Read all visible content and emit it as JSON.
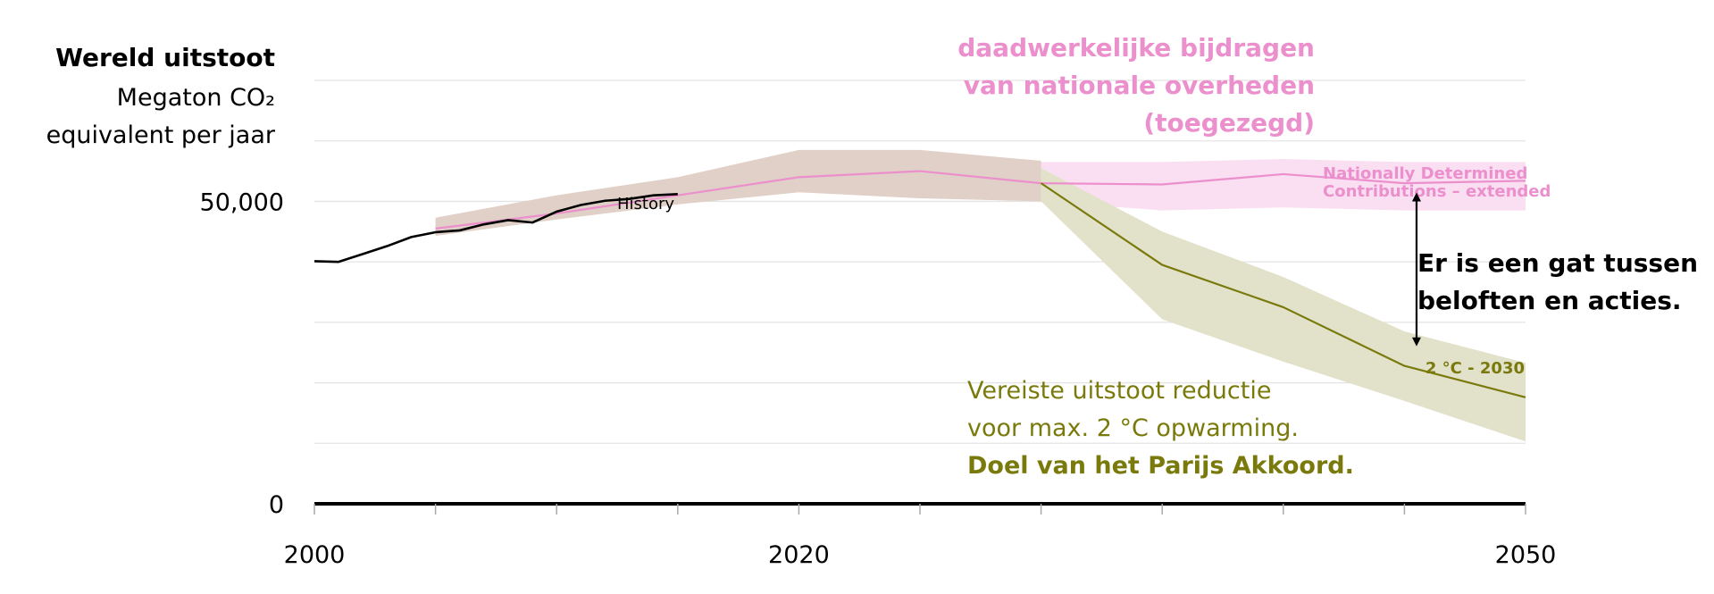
{
  "chart_data": {
    "type": "line",
    "y_title": "Wereld uitstoot",
    "y_unit_line1": "Megaton CO₂",
    "y_unit_line2": "equivalent per jaar",
    "xlim": [
      2000,
      2050
    ],
    "ylim": [
      0,
      70000
    ],
    "x_ticks": [
      2000,
      2020,
      2050
    ],
    "x_minor_ticks": [
      2000,
      2005,
      2010,
      2015,
      2020,
      2025,
      2030,
      2035,
      2040,
      2045,
      2050
    ],
    "y_ticks": [
      {
        "value": 0,
        "label": "0"
      },
      {
        "value": 50000,
        "label": "50,000"
      }
    ],
    "grid": true,
    "series": [
      {
        "name": "History",
        "color": "#000000",
        "x": [
          2000,
          2001,
          2002,
          2003,
          2004,
          2005,
          2006,
          2007,
          2008,
          2009,
          2010,
          2011,
          2012,
          2013,
          2014,
          2015
        ],
        "y": [
          40100,
          40000,
          41300,
          42600,
          44100,
          44900,
          45200,
          46200,
          46900,
          46500,
          48300,
          49400,
          50100,
          50400,
          51000,
          51200
        ]
      },
      {
        "name": "Nationally Determined Contributions – extended",
        "color": "#ec8fcd",
        "band_color": "#f9dff1",
        "x": [
          2005,
          2010,
          2015,
          2020,
          2025,
          2030,
          2035,
          2040,
          2045,
          2050
        ],
        "y": [
          45500,
          48000,
          51000,
          54000,
          55000,
          53000,
          52800,
          54500,
          53000,
          53400
        ],
        "lower": [
          45000,
          47500,
          50000,
          51500,
          51000,
          50000,
          48500,
          49000,
          48500,
          48500
        ],
        "upper": [
          46000,
          48500,
          52000,
          55200,
          56500,
          56500,
          56500,
          57000,
          56500,
          56500
        ]
      },
      {
        "name": "2 °C - 2030",
        "color": "#7a7a0c",
        "band_color": "#e2e2cb",
        "x": [
          2030,
          2035,
          2040,
          2045,
          2050
        ],
        "y": [
          53000,
          39500,
          32500,
          22800,
          17600
        ],
        "lower": [
          50000,
          30500,
          23500,
          17000,
          10300
        ],
        "upper": [
          55500,
          45000,
          37500,
          28500,
          23300
        ]
      }
    ],
    "uncertainty_band": {
      "color": "#e0d0c7",
      "x": [
        2005,
        2010,
        2015,
        2020,
        2025,
        2030
      ],
      "lower": [
        44300,
        47000,
        49500,
        51500,
        50500,
        50000
      ],
      "upper": [
        47300,
        51000,
        54000,
        58500,
        58500,
        56700
      ]
    },
    "annotations": {
      "ndc_title": [
        "daadwerkelijke bijdragen",
        "van nationale overheden",
        "(toegezegd)"
      ],
      "ndc_label": [
        "Nationally Determined",
        "Contributions – extended"
      ],
      "history_label": "History",
      "two_deg_label": "2 °C - 2030",
      "gap_text": [
        "Er is een gat tussen",
        "beloften en acties."
      ],
      "required_text": [
        "Vereiste uitstoot reductie",
        "voor max. 2 °C opwarming.",
        "Doel van het Parijs Akkoord."
      ],
      "gap_arrow": {
        "x": 2045.5,
        "from": 52500,
        "to": 25000
      }
    }
  }
}
